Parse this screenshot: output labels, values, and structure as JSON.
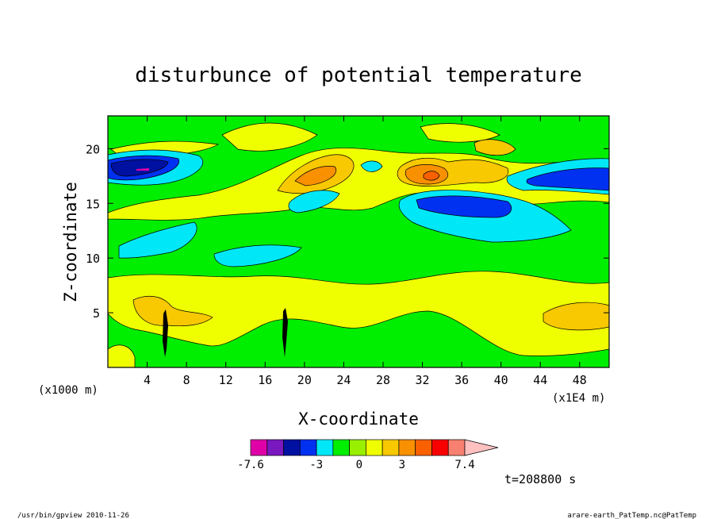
{
  "chart_data": {
    "type": "heatmap",
    "title": "disturbunce of potential temperature",
    "xlabel": "X-coordinate",
    "ylabel": "Z-coordinate",
    "x_unit": "(x1E4 m)",
    "y_unit": "(x1000 m)",
    "xlim": [
      0,
      51
    ],
    "ylim": [
      0,
      23
    ],
    "x_ticks": [
      4,
      8,
      12,
      16,
      20,
      24,
      28,
      32,
      36,
      40,
      44,
      48
    ],
    "y_ticks": [
      5,
      10,
      15,
      20
    ],
    "colorbar": {
      "colors": [
        "#e000a8",
        "#7a18c0",
        "#0010a0",
        "#0030f0",
        "#00e8f8",
        "#00ee00",
        "#98f000",
        "#f0ff00",
        "#f8c800",
        "#f89000",
        "#f86000",
        "#f80000",
        "#f88070",
        "#ffc0c0"
      ],
      "tick_labels": [
        "-7.6",
        "-3",
        "0",
        "3",
        "7.4"
      ],
      "tick_values": [
        -7.6,
        -3,
        0,
        3,
        7.4
      ],
      "min": -7.6,
      "max": 7.4
    },
    "time_label": "t=208800 s",
    "footer_left": "/usr/bin/gpview   2010-11-26",
    "footer_right": "arare-earth_PatTemp.nc@PatTemp"
  }
}
